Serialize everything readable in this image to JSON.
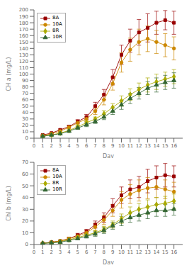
{
  "chart_data": [
    {
      "type": "line",
      "x": [
        1,
        2,
        3,
        4,
        5,
        6,
        7,
        8,
        9,
        10,
        11,
        12,
        13,
        14,
        15,
        16
      ],
      "xlim": [
        0,
        17
      ],
      "xticks": [
        0,
        1,
        2,
        3,
        4,
        5,
        6,
        7,
        8,
        9,
        10,
        11,
        12,
        13,
        14,
        15,
        16
      ],
      "ylim": [
        0,
        200
      ],
      "yticks": [
        0,
        10,
        20,
        30,
        40,
        50,
        60,
        70,
        80,
        90,
        100,
        110,
        120,
        130,
        140,
        150,
        160,
        170,
        180,
        190,
        200
      ],
      "xlabel": "Day",
      "ylabel": "CH a (mg/L)",
      "legend": "upper left",
      "grid": false,
      "series": [
        {
          "name": "8A",
          "color": "#990000",
          "marker": "square",
          "values": [
            5,
            8,
            13,
            18,
            26,
            33,
            50,
            68,
            95,
            130,
            152,
            165,
            172,
            180,
            184,
            180
          ],
          "errors": [
            0.5,
            1,
            1.5,
            2,
            3,
            4,
            6,
            8,
            12,
            15,
            18,
            20,
            22,
            18,
            15,
            18
          ]
        },
        {
          "name": "10A",
          "color": "#CC8800",
          "marker": "circle",
          "values": [
            4,
            7,
            11,
            17,
            24,
            30,
            42,
            60,
            85,
            118,
            138,
            150,
            155,
            150,
            145,
            140
          ],
          "errors": [
            0.5,
            1,
            1.5,
            2,
            3,
            4,
            5,
            8,
            10,
            15,
            18,
            20,
            20,
            18,
            18,
            18
          ]
        },
        {
          "name": "8R",
          "color": "#AAAA00",
          "marker": "diamond",
          "values": [
            3,
            5,
            8,
            12,
            18,
            24,
            30,
            38,
            48,
            58,
            68,
            76,
            83,
            88,
            92,
            96
          ],
          "errors": [
            0.5,
            0.8,
            1,
            1.5,
            2,
            3,
            3,
            5,
            6,
            8,
            9,
            10,
            11,
            12,
            11,
            11
          ]
        },
        {
          "name": "10R",
          "color": "#336633",
          "marker": "triangle",
          "values": [
            3,
            5,
            7,
            11,
            16,
            21,
            26,
            33,
            42,
            52,
            62,
            70,
            78,
            83,
            87,
            90
          ],
          "errors": [
            0.5,
            0.8,
            1,
            1.5,
            2,
            3,
            3,
            4,
            5,
            7,
            8,
            9,
            10,
            11,
            11,
            12
          ]
        }
      ]
    },
    {
      "type": "line",
      "x": [
        1,
        2,
        3,
        4,
        5,
        6,
        7,
        8,
        9,
        10,
        11,
        12,
        13,
        14,
        15,
        16
      ],
      "xlim": [
        0,
        17
      ],
      "xticks": [
        0,
        1,
        2,
        3,
        4,
        5,
        6,
        7,
        8,
        9,
        10,
        11,
        12,
        13,
        14,
        15,
        16
      ],
      "ylim": [
        0,
        70
      ],
      "yticks": [
        0,
        10,
        20,
        30,
        40,
        50,
        60,
        70
      ],
      "xlabel": "Day",
      "ylabel": "Chl b (mg/L)",
      "legend": "upper left",
      "grid": false,
      "series": [
        {
          "name": "8A",
          "color": "#990000",
          "marker": "square",
          "values": [
            1,
            2,
            3,
            5,
            8,
            11,
            17,
            23,
            33,
            42,
            47,
            49,
            54,
            57,
            59,
            58
          ],
          "errors": [
            0.3,
            0.5,
            0.8,
            1,
            1.5,
            2,
            3,
            4,
            6,
            7,
            8,
            9,
            10,
            10,
            10,
            9
          ]
        },
        {
          "name": "10A",
          "color": "#CC8800",
          "marker": "circle",
          "values": [
            1,
            2,
            3,
            5,
            7,
            10,
            15,
            21,
            29,
            38,
            43,
            46,
            48,
            49,
            47,
            45
          ],
          "errors": [
            0.3,
            0.5,
            0.8,
            1,
            1.5,
            2,
            3,
            4,
            5,
            7,
            8,
            9,
            9,
            9,
            8,
            8
          ]
        },
        {
          "name": "8R",
          "color": "#AAAA00",
          "marker": "diamond",
          "values": [
            1,
            1.5,
            2.5,
            4,
            6,
            8,
            10,
            13,
            17,
            22,
            27,
            30,
            32,
            34,
            35,
            37
          ],
          "errors": [
            0.2,
            0.4,
            0.6,
            0.8,
            1,
            1.5,
            2,
            2.5,
            3,
            4,
            5,
            5,
            6,
            6,
            6,
            6
          ]
        },
        {
          "name": "10R",
          "color": "#336633",
          "marker": "triangle",
          "values": [
            1,
            1.5,
            2,
            3.5,
            5,
            7,
            9,
            12,
            16,
            20,
            23,
            25,
            27,
            29,
            29,
            30
          ],
          "errors": [
            0.2,
            0.4,
            0.6,
            0.8,
            1,
            1.5,
            2,
            2.5,
            3,
            4,
            4,
            5,
            5,
            5,
            5,
            5
          ]
        }
      ]
    }
  ]
}
